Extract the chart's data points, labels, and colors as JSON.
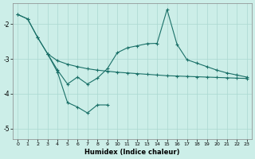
{
  "xlabel": "Humidex (Indice chaleur)",
  "background_color": "#cceee8",
  "grid_color": "#aad8d0",
  "line_color": "#1a7068",
  "xlim": [
    -0.5,
    23.5
  ],
  "ylim": [
    -5.3,
    -1.4
  ],
  "yticks": [
    -5,
    -4,
    -3,
    -2
  ],
  "xticks": [
    0,
    1,
    2,
    3,
    4,
    5,
    6,
    7,
    8,
    9,
    10,
    11,
    12,
    13,
    14,
    15,
    16,
    17,
    18,
    19,
    20,
    21,
    22,
    23
  ],
  "line1_x": [
    0,
    1,
    2,
    3,
    4,
    5,
    6,
    7,
    8,
    9,
    10,
    11,
    12,
    13,
    14,
    15,
    16,
    17,
    18,
    19,
    20,
    21,
    22,
    23
  ],
  "line1_y": [
    -1.72,
    -1.85,
    -2.38,
    -2.85,
    -3.05,
    -3.15,
    -3.22,
    -3.28,
    -3.32,
    -3.35,
    -3.38,
    -3.4,
    -3.42,
    -3.44,
    -3.46,
    -3.48,
    -3.49,
    -3.5,
    -3.51,
    -3.52,
    -3.53,
    -3.54,
    -3.55,
    -3.56
  ],
  "line2_x": [
    0,
    1,
    2,
    3,
    4,
    5,
    6,
    7,
    8,
    9,
    10,
    11,
    12,
    13,
    14,
    15,
    16,
    17,
    18,
    19,
    20,
    21,
    22,
    23
  ],
  "line2_y": [
    -1.72,
    -1.85,
    -2.38,
    -2.85,
    -3.32,
    -3.72,
    -3.52,
    -3.72,
    -3.55,
    -3.28,
    -2.82,
    -2.68,
    -2.62,
    -2.56,
    -2.55,
    -1.58,
    -2.58,
    -3.02,
    -3.12,
    -3.22,
    -3.32,
    -3.4,
    -3.46,
    -3.52
  ],
  "line3_x": [
    3,
    4,
    5,
    6,
    7,
    8,
    9
  ],
  "line3_y": [
    -2.85,
    -3.38,
    -4.25,
    -4.38,
    -4.55,
    -4.32,
    -4.32
  ]
}
